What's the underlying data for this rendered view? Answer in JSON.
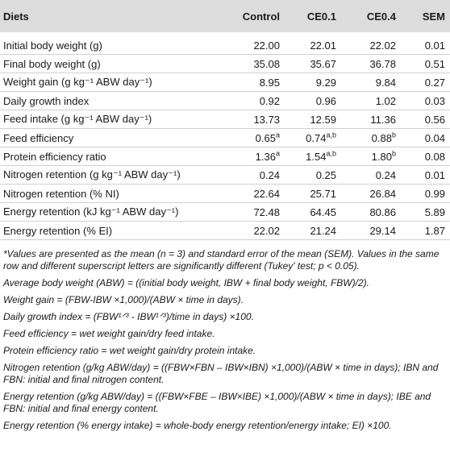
{
  "header": {
    "label": "Diets",
    "columns": [
      "Control",
      "CE0.1",
      "CE0.4",
      "SEM"
    ]
  },
  "rows": [
    {
      "name": "Initial body weight (g)",
      "values": [
        "22.00",
        "22.01",
        "22.02",
        "0.01"
      ],
      "sups": [
        "",
        "",
        "",
        ""
      ]
    },
    {
      "name": "Final body weight (g)",
      "values": [
        "35.08",
        "35.67",
        "36.78",
        "0.51"
      ],
      "sups": [
        "",
        "",
        "",
        ""
      ]
    },
    {
      "name": "Weight gain (g kg⁻¹ ABW day⁻¹)",
      "values": [
        "8.95",
        "9.29",
        "9.84",
        "0.27"
      ],
      "sups": [
        "",
        "",
        "",
        ""
      ]
    },
    {
      "name": "Daily growth index",
      "values": [
        "0.92",
        "0.96",
        "1.02",
        "0.03"
      ],
      "sups": [
        "",
        "",
        "",
        ""
      ]
    },
    {
      "name": "Feed intake (g kg⁻¹ ABW day⁻¹)",
      "values": [
        "13.73",
        "12.59",
        "11.36",
        "0.56"
      ],
      "sups": [
        "",
        "",
        "",
        ""
      ]
    },
    {
      "name": "Feed efficiency",
      "values": [
        "0.65",
        "0.74",
        "0.88",
        "0.04"
      ],
      "sups": [
        "a",
        "a,b",
        "b",
        ""
      ]
    },
    {
      "name": "Protein efficiency ratio",
      "values": [
        "1.36",
        "1.54",
        "1.80",
        "0.08"
      ],
      "sups": [
        "a",
        "a,b",
        "b",
        ""
      ]
    },
    {
      "name": "Nitrogen retention (g kg⁻¹ ABW day⁻¹)",
      "values": [
        "0.24",
        "0.25",
        "0.24",
        "0.01"
      ],
      "sups": [
        "",
        "",
        "",
        ""
      ]
    },
    {
      "name": "Nitrogen retention (% NI)",
      "values": [
        "22.64",
        "25.71",
        "26.84",
        "0.99"
      ],
      "sups": [
        "",
        "",
        "",
        ""
      ]
    },
    {
      "name": "Energy retention (kJ kg⁻¹ ABW day⁻¹)",
      "values": [
        "72.48",
        "64.45",
        "80.86",
        "5.89"
      ],
      "sups": [
        "",
        "",
        "",
        ""
      ]
    },
    {
      "name": "Energy retention (% EI)",
      "values": [
        "22.02",
        "21.24",
        "29.14",
        "1.87"
      ],
      "sups": [
        "",
        "",
        "",
        ""
      ]
    }
  ],
  "footnotes": [
    "*Values are presented as the mean (n = 3) and standard error of the mean (SEM). Values in the same row and different superscript letters are significantly different (Tukey' test; p < 0.05).",
    "Average body weight (ABW) = ((initial body weight, IBW + final body weight, FBW)/2).",
    "Weight gain = (FBW-IBW ×1,000)/(ABW × time in days).",
    "Daily growth index = (FBW¹ᐟ³ - IBW¹ᐟ³)/time in days) ×100.",
    "Feed efficiency = wet weight gain/dry feed intake.",
    "Protein efficiency ratio = wet weight gain/dry protein intake.",
    "Nitrogen retention (g/kg ABW/day) = ((FBW×FBN – IBW×IBN) ×1,000)/(ABW × time in days); IBN and FBN: initial and final nitrogen content.",
    "Energy retention (g/kg ABW/day) = ((FBW×FBE – IBW×IBE) ×1,000)/(ABW × time in days); IBE and FBN: initial and final energy content.",
    "Energy retention (% energy intake) = whole-body energy retention/energy intake; EI) ×100."
  ]
}
